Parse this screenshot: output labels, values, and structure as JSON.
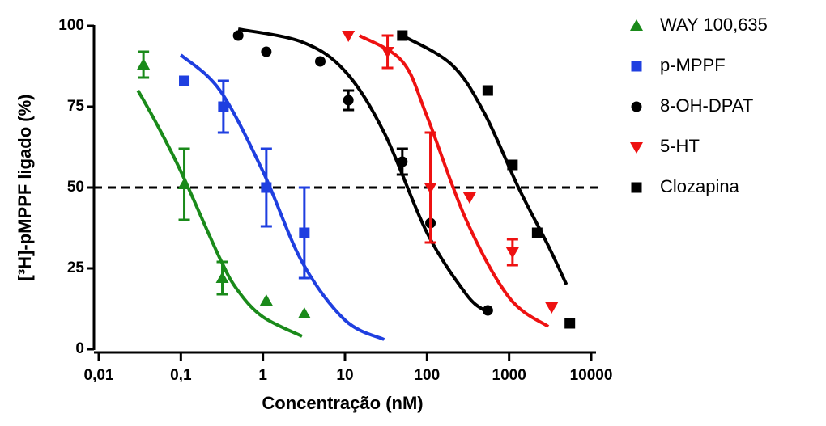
{
  "chart_data": {
    "type": "scatter",
    "x_label": "Concentração (nM)",
    "y_label": "[³H]-pMPPF ligado (%)",
    "xscale": "log",
    "xlim": [
      0.01,
      10000
    ],
    "xticks": [
      {
        "value": 0.01,
        "label": "0,01"
      },
      {
        "value": 0.1,
        "label": "0,1"
      },
      1,
      10,
      100,
      1000,
      10000
    ],
    "ylim": [
      0,
      100
    ],
    "yticks": [
      0,
      25,
      50,
      75,
      100
    ],
    "hline": 50,
    "legend": "right",
    "series": [
      {
        "name": "WAY 100,635",
        "color": "#1a8a1a",
        "marker": "triangle",
        "x": [
          0.035,
          0.11,
          0.32,
          1.1,
          3.2
        ],
        "values": [
          88,
          51,
          22,
          15,
          11
        ],
        "errors": [
          4,
          11,
          5,
          null,
          null
        ],
        "curve": {
          "x": [
            0.03,
            0.05,
            0.1,
            0.3,
            0.5,
            1,
            3
          ],
          "values": [
            80,
            70,
            55,
            28,
            18,
            10,
            4
          ]
        }
      },
      {
        "name": "p-MPPF",
        "color": "#1f3fe0",
        "marker": "square",
        "x": [
          0.11,
          0.33,
          1.1,
          3.2
        ],
        "values": [
          83,
          75,
          50,
          36
        ],
        "errors": [
          null,
          8,
          12,
          14
        ],
        "curve": {
          "x": [
            0.1,
            0.3,
            1,
            3,
            10,
            30
          ],
          "values": [
            91,
            80,
            55,
            27,
            9,
            3
          ]
        }
      },
      {
        "name": "8-OH-DPAT",
        "color": "#000000",
        "marker": "circle",
        "x": [
          0.5,
          1.1,
          5,
          11,
          50,
          110,
          550
        ],
        "values": [
          97,
          92,
          89,
          77,
          58,
          39,
          12
        ],
        "errors": [
          null,
          null,
          null,
          3,
          4,
          null,
          null
        ],
        "curve": {
          "x": [
            0.5,
            3,
            10,
            30,
            100,
            300,
            500
          ],
          "values": [
            99,
            95,
            86,
            67,
            36,
            17,
            12
          ]
        }
      },
      {
        "name": "5-HT",
        "color": "#ee1111",
        "marker": "triangle-down",
        "x": [
          11,
          33,
          110,
          330,
          1100,
          3300
        ],
        "values": [
          97,
          92,
          50,
          47,
          30,
          13
        ],
        "errors": [
          null,
          5,
          17,
          null,
          4,
          null
        ],
        "curve": {
          "x": [
            15,
            50,
            100,
            300,
            1000,
            3000
          ],
          "values": [
            97,
            89,
            72,
            40,
            16,
            7
          ]
        }
      },
      {
        "name": "Clozapina",
        "color": "#000000",
        "marker": "square",
        "x": [
          50,
          550,
          1100,
          2200,
          5500
        ],
        "values": [
          97,
          80,
          57,
          36,
          8
        ],
        "errors": [
          null,
          null,
          null,
          null,
          null
        ],
        "curve": {
          "x": [
            50,
            200,
            500,
            1300,
            3000,
            5000
          ],
          "values": [
            97,
            88,
            73,
            50,
            32,
            20
          ]
        }
      }
    ]
  }
}
